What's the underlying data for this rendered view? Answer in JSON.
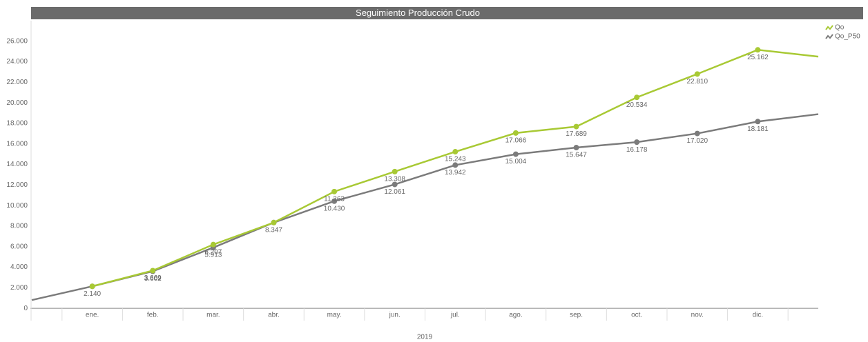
{
  "chart_data": {
    "type": "line",
    "title": "Seguimiento Producción Crudo",
    "x_label": "2019",
    "categories": [
      null,
      "ene.",
      "feb.",
      "mar.",
      "abr.",
      "may.",
      "jun.",
      "jul.",
      "ago.",
      "sep.",
      "oct.",
      "nov.",
      "dic.",
      null
    ],
    "series": [
      {
        "name": "Qo",
        "color": "#a8c934",
        "values": [
          null,
          2140,
          3669,
          6207,
          8347,
          11363,
          13308,
          15243,
          17066,
          17689,
          20534,
          22810,
          25162,
          24500
        ],
        "value_labels": [
          null,
          null,
          "3.669",
          "6.207",
          null,
          "11.363",
          "13.308",
          "15.243",
          "17.066",
          "17.689",
          "20.534",
          "22.810",
          "25.162",
          null
        ]
      },
      {
        "name": "Qo_P50",
        "color": "#7b7b7b",
        "values": [
          800,
          2140,
          3602,
          5913,
          8347,
          10430,
          12061,
          13942,
          15004,
          15647,
          16178,
          17020,
          18181,
          18900
        ],
        "value_labels": [
          null,
          "2.140",
          "3.602",
          "5.913",
          "8.347",
          "10.430",
          "12.061",
          "13.942",
          "15.004",
          "15.647",
          "16.178",
          "17.020",
          "18.181",
          null
        ]
      }
    ],
    "ylim": [
      -1200,
      28000
    ],
    "yticks": [
      0,
      {
        "value": 2000,
        "label": "2.000"
      },
      {
        "value": 4000,
        "label": "4.000"
      },
      {
        "value": 6000,
        "label": "6.000"
      },
      {
        "value": 8000,
        "label": "8.000"
      },
      {
        "value": 10000,
        "label": "10.000"
      },
      {
        "value": 12000,
        "label": "12.000"
      },
      {
        "value": 14000,
        "label": "14.000"
      },
      {
        "value": 16000,
        "label": "16.000"
      },
      {
        "value": 18000,
        "label": "18.000"
      },
      {
        "value": 20000,
        "label": "20.000"
      },
      {
        "value": 22000,
        "label": "22.000"
      },
      {
        "value": 24000,
        "label": "24.000"
      },
      {
        "value": 26000,
        "label": "26.000"
      }
    ],
    "grid": false,
    "legend": "top-right"
  }
}
